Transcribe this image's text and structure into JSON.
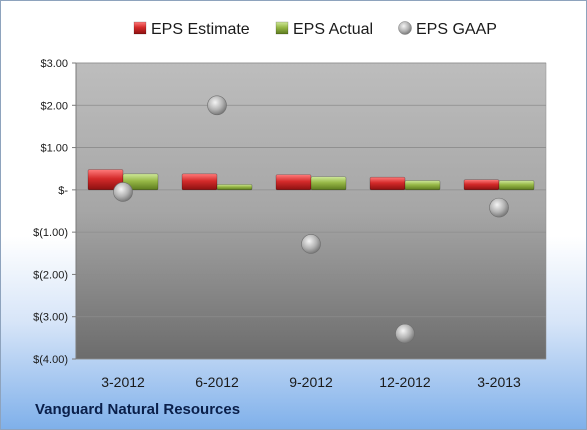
{
  "company": "Vanguard Natural Resources",
  "chart_data": {
    "type": "bar",
    "categories": [
      "3-2012",
      "6-2012",
      "9-2012",
      "12-2012",
      "3-2013"
    ],
    "series": [
      {
        "name": "EPS Estimate",
        "kind": "bar",
        "color": "#c0272d",
        "values": [
          0.48,
          0.38,
          0.36,
          0.3,
          0.24
        ]
      },
      {
        "name": "EPS Actual",
        "kind": "bar",
        "color": "#8fae3c",
        "values": [
          0.38,
          0.13,
          0.31,
          0.22,
          0.22
        ]
      },
      {
        "name": "EPS GAAP",
        "kind": "scatter",
        "color": "#a8a8a8",
        "values": [
          -0.05,
          2.0,
          -1.28,
          -3.4,
          -0.42
        ]
      }
    ],
    "yticks": [
      "$3.00",
      "$2.00",
      "$1.00",
      "$-",
      "$(1.00)",
      "$(2.00)",
      "$(3.00)",
      "$(4.00)"
    ],
    "ylim": [
      -4,
      3
    ],
    "legend_position": "top",
    "grid": true
  }
}
